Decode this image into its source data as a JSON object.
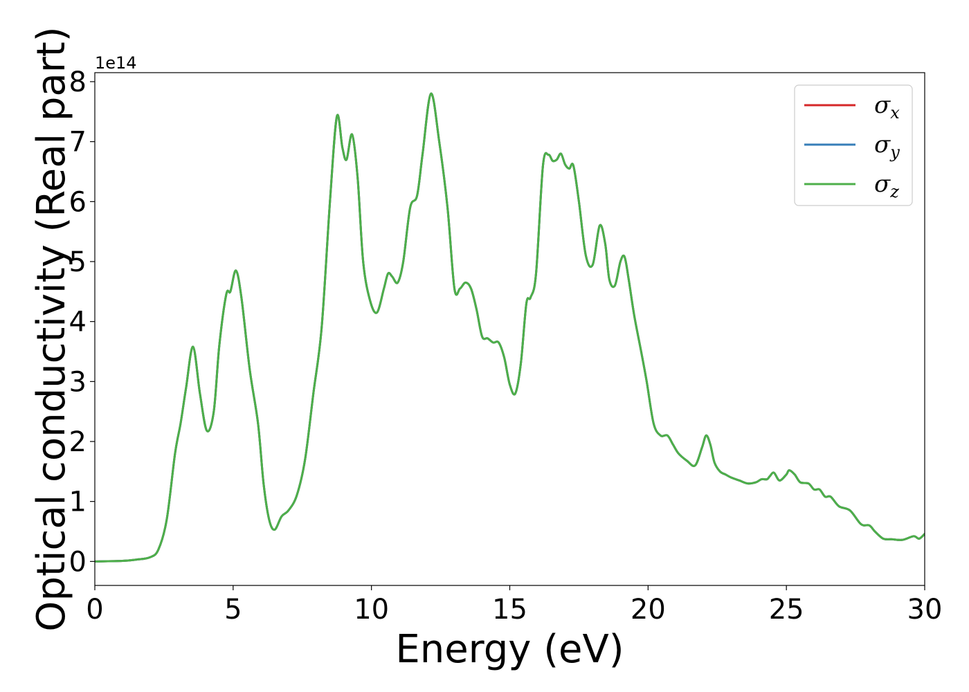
{
  "chart_data": {
    "type": "line",
    "xlabel": "Energy (eV)",
    "ylabel": "Optical conductivity (Real part)",
    "y_offset_label": "1e14",
    "xlim": [
      0,
      30
    ],
    "ylim": [
      -0.4,
      8.15
    ],
    "x_ticks": [
      0,
      5,
      10,
      15,
      20,
      25,
      30
    ],
    "x_tick_labels": [
      "0",
      "5",
      "10",
      "15",
      "20",
      "25",
      "30"
    ],
    "y_ticks": [
      0,
      1,
      2,
      3,
      4,
      5,
      6,
      7,
      8
    ],
    "y_tick_labels": [
      "0",
      "1",
      "2",
      "3",
      "4",
      "5",
      "6",
      "7",
      "8"
    ],
    "grid": false,
    "legend_position": "top-right",
    "legend": [
      {
        "symbol": "σ",
        "subscript": "x",
        "color": "#d62728"
      },
      {
        "symbol": "σ",
        "subscript": "y",
        "color": "#377eb8"
      },
      {
        "symbol": "σ",
        "subscript": "z",
        "color": "#4daf4a"
      }
    ],
    "x": [
      0,
      1,
      1.5,
      2,
      2.3,
      2.6,
      2.9,
      3.1,
      3.3,
      3.55,
      3.8,
      4.05,
      4.3,
      4.5,
      4.75,
      4.9,
      5.1,
      5.3,
      5.6,
      5.9,
      6.1,
      6.3,
      6.5,
      6.75,
      7.0,
      7.3,
      7.6,
      7.9,
      8.2,
      8.5,
      8.75,
      8.95,
      9.1,
      9.3,
      9.5,
      9.7,
      9.95,
      10.2,
      10.45,
      10.6,
      10.75,
      10.95,
      11.15,
      11.4,
      11.65,
      11.85,
      12.15,
      12.45,
      12.75,
      13.0,
      13.2,
      13.4,
      13.6,
      13.8,
      14.0,
      14.2,
      14.4,
      14.6,
      14.8,
      15.0,
      15.2,
      15.4,
      15.6,
      15.75,
      15.95,
      16.2,
      16.4,
      16.55,
      16.7,
      16.85,
      17.0,
      17.15,
      17.3,
      17.5,
      17.75,
      18.0,
      18.25,
      18.45,
      18.6,
      18.8,
      19.0,
      19.15,
      19.3,
      19.5,
      19.75,
      19.95,
      20.2,
      20.45,
      20.7,
      20.9,
      21.1,
      21.4,
      21.7,
      21.95,
      22.1,
      22.25,
      22.4,
      22.6,
      22.8,
      23.0,
      23.3,
      23.6,
      23.9,
      24.1,
      24.3,
      24.4,
      24.55,
      24.75,
      25.0,
      25.1,
      25.3,
      25.5,
      25.8,
      26.0,
      26.2,
      26.4,
      26.6,
      26.9,
      27.3,
      27.7,
      28.0,
      28.2,
      28.5,
      28.8,
      29.2,
      29.6,
      29.8,
      30.0
    ],
    "series": [
      {
        "color": "#d62728",
        "values": [
          0,
          0.01,
          0.03,
          0.07,
          0.2,
          0.7,
          1.8,
          2.3,
          2.9,
          3.58,
          2.8,
          2.18,
          2.5,
          3.6,
          4.45,
          4.5,
          4.85,
          4.4,
          3.2,
          2.3,
          1.3,
          0.7,
          0.53,
          0.75,
          0.85,
          1.1,
          1.7,
          2.8,
          3.9,
          6.0,
          7.42,
          6.9,
          6.7,
          7.12,
          6.4,
          5.0,
          4.35,
          4.15,
          4.55,
          4.8,
          4.75,
          4.65,
          5.0,
          5.9,
          6.1,
          6.8,
          7.8,
          7.0,
          5.9,
          4.55,
          4.55,
          4.65,
          4.55,
          4.2,
          3.75,
          3.72,
          3.65,
          3.65,
          3.4,
          2.95,
          2.8,
          3.3,
          4.3,
          4.4,
          4.8,
          6.6,
          6.78,
          6.68,
          6.7,
          6.8,
          6.62,
          6.55,
          6.6,
          6.0,
          5.1,
          4.95,
          5.6,
          5.3,
          4.7,
          4.6,
          5.0,
          5.08,
          4.7,
          4.1,
          3.5,
          3.0,
          2.3,
          2.1,
          2.1,
          1.95,
          1.8,
          1.68,
          1.6,
          1.9,
          2.1,
          1.95,
          1.65,
          1.5,
          1.45,
          1.4,
          1.35,
          1.3,
          1.32,
          1.37,
          1.37,
          1.42,
          1.48,
          1.35,
          1.45,
          1.52,
          1.45,
          1.32,
          1.3,
          1.2,
          1.2,
          1.08,
          1.08,
          0.92,
          0.85,
          0.62,
          0.6,
          0.5,
          0.38,
          0.37,
          0.36,
          0.42,
          0.38,
          0.46
        ]
      },
      {
        "color": "#377eb8",
        "values": [
          0,
          0.01,
          0.03,
          0.07,
          0.2,
          0.7,
          1.8,
          2.3,
          2.9,
          3.58,
          2.8,
          2.18,
          2.5,
          3.6,
          4.45,
          4.5,
          4.85,
          4.4,
          3.2,
          2.3,
          1.3,
          0.7,
          0.53,
          0.75,
          0.85,
          1.1,
          1.7,
          2.8,
          3.9,
          6.0,
          7.42,
          6.9,
          6.7,
          7.12,
          6.4,
          5.0,
          4.35,
          4.15,
          4.55,
          4.8,
          4.75,
          4.65,
          5.0,
          5.9,
          6.1,
          6.8,
          7.8,
          7.0,
          5.9,
          4.55,
          4.55,
          4.65,
          4.55,
          4.2,
          3.75,
          3.72,
          3.65,
          3.65,
          3.4,
          2.95,
          2.8,
          3.3,
          4.3,
          4.4,
          4.8,
          6.6,
          6.78,
          6.68,
          6.7,
          6.8,
          6.62,
          6.55,
          6.6,
          6.0,
          5.1,
          4.95,
          5.6,
          5.3,
          4.7,
          4.6,
          5.0,
          5.08,
          4.7,
          4.1,
          3.5,
          3.0,
          2.3,
          2.1,
          2.1,
          1.95,
          1.8,
          1.68,
          1.6,
          1.9,
          2.1,
          1.95,
          1.65,
          1.5,
          1.45,
          1.4,
          1.35,
          1.3,
          1.32,
          1.37,
          1.37,
          1.42,
          1.48,
          1.35,
          1.45,
          1.52,
          1.45,
          1.32,
          1.3,
          1.2,
          1.2,
          1.08,
          1.08,
          0.92,
          0.85,
          0.62,
          0.6,
          0.5,
          0.38,
          0.37,
          0.36,
          0.42,
          0.38,
          0.46
        ]
      },
      {
        "color": "#4daf4a",
        "values": [
          0,
          0.01,
          0.03,
          0.07,
          0.2,
          0.7,
          1.8,
          2.3,
          2.9,
          3.58,
          2.8,
          2.18,
          2.5,
          3.6,
          4.45,
          4.5,
          4.85,
          4.4,
          3.2,
          2.3,
          1.3,
          0.7,
          0.53,
          0.75,
          0.85,
          1.1,
          1.7,
          2.8,
          3.9,
          6.0,
          7.42,
          6.9,
          6.7,
          7.12,
          6.4,
          5.0,
          4.35,
          4.15,
          4.55,
          4.8,
          4.75,
          4.65,
          5.0,
          5.9,
          6.1,
          6.8,
          7.8,
          7.0,
          5.9,
          4.55,
          4.55,
          4.65,
          4.55,
          4.2,
          3.75,
          3.72,
          3.65,
          3.65,
          3.4,
          2.95,
          2.8,
          3.3,
          4.3,
          4.4,
          4.8,
          6.6,
          6.78,
          6.68,
          6.7,
          6.8,
          6.62,
          6.55,
          6.6,
          6.0,
          5.1,
          4.95,
          5.6,
          5.3,
          4.7,
          4.6,
          5.0,
          5.08,
          4.7,
          4.1,
          3.5,
          3.0,
          2.3,
          2.1,
          2.1,
          1.95,
          1.8,
          1.68,
          1.6,
          1.9,
          2.1,
          1.95,
          1.65,
          1.5,
          1.45,
          1.4,
          1.35,
          1.3,
          1.32,
          1.37,
          1.37,
          1.42,
          1.48,
          1.35,
          1.45,
          1.52,
          1.45,
          1.32,
          1.3,
          1.2,
          1.2,
          1.08,
          1.08,
          0.92,
          0.85,
          0.62,
          0.6,
          0.5,
          0.38,
          0.37,
          0.36,
          0.42,
          0.38,
          0.46
        ]
      }
    ]
  }
}
